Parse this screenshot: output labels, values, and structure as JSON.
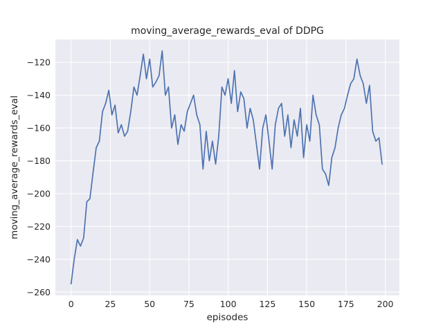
{
  "figure": {
    "title": "moving_average_rewards_eval of DDPG",
    "xlabel": "episodes",
    "ylabel": "moving_average_rewards_eval"
  },
  "chart_data": {
    "type": "line",
    "title": "moving_average_rewards_eval of DDPG",
    "xlabel": "episodes",
    "ylabel": "moving_average_rewards_eval",
    "xlim": [
      -10,
      209
    ],
    "ylim": [
      -262,
      -106
    ],
    "xticks": [
      0,
      25,
      50,
      75,
      100,
      125,
      150,
      175,
      200
    ],
    "yticks": [
      -260,
      -240,
      -220,
      -200,
      -180,
      -160,
      -140,
      -120
    ],
    "grid": true,
    "legend": "none",
    "style": {
      "line_color": "#4c72b0",
      "axes_background": "#eaeaf2",
      "gridline_color": "#ffffff",
      "text_color": "#262626"
    },
    "series": [
      {
        "name": "moving_average_rewards_eval",
        "x": [
          0,
          2,
          4,
          6,
          8,
          10,
          12,
          14,
          16,
          18,
          20,
          22,
          24,
          26,
          28,
          30,
          32,
          34,
          36,
          38,
          40,
          42,
          44,
          46,
          48,
          50,
          52,
          54,
          56,
          58,
          60,
          62,
          64,
          66,
          68,
          70,
          72,
          74,
          76,
          78,
          80,
          82,
          84,
          86,
          88,
          90,
          92,
          94,
          96,
          98,
          100,
          102,
          104,
          106,
          108,
          110,
          112,
          114,
          116,
          118,
          120,
          122,
          124,
          126,
          128,
          130,
          132,
          134,
          136,
          138,
          140,
          142,
          144,
          146,
          148,
          150,
          152,
          154,
          156,
          158,
          160,
          162,
          164,
          166,
          168,
          170,
          172,
          174,
          176,
          178,
          180,
          182,
          184,
          186,
          188,
          190,
          192,
          194,
          196,
          198
        ],
        "y": [
          -255,
          -240,
          -228,
          -232,
          -227,
          -205,
          -203,
          -187,
          -172,
          -168,
          -150,
          -145,
          -137,
          -152,
          -146,
          -163,
          -158,
          -165,
          -162,
          -150,
          -135,
          -140,
          -128,
          -115,
          -130,
          -118,
          -135,
          -132,
          -128,
          -113,
          -140,
          -135,
          -160,
          -152,
          -170,
          -158,
          -162,
          -150,
          -145,
          -140,
          -152,
          -158,
          -185,
          -162,
          -180,
          -168,
          -182,
          -165,
          -135,
          -140,
          -130,
          -145,
          -125,
          -150,
          -138,
          -142,
          -160,
          -148,
          -155,
          -170,
          -185,
          -160,
          -152,
          -168,
          -185,
          -158,
          -148,
          -145,
          -165,
          -152,
          -172,
          -155,
          -165,
          -148,
          -178,
          -158,
          -168,
          -140,
          -152,
          -158,
          -185,
          -188,
          -195,
          -178,
          -172,
          -160,
          -152,
          -148,
          -140,
          -133,
          -130,
          -118,
          -128,
          -133,
          -145,
          -134,
          -162,
          -168,
          -166,
          -182
        ]
      }
    ]
  }
}
